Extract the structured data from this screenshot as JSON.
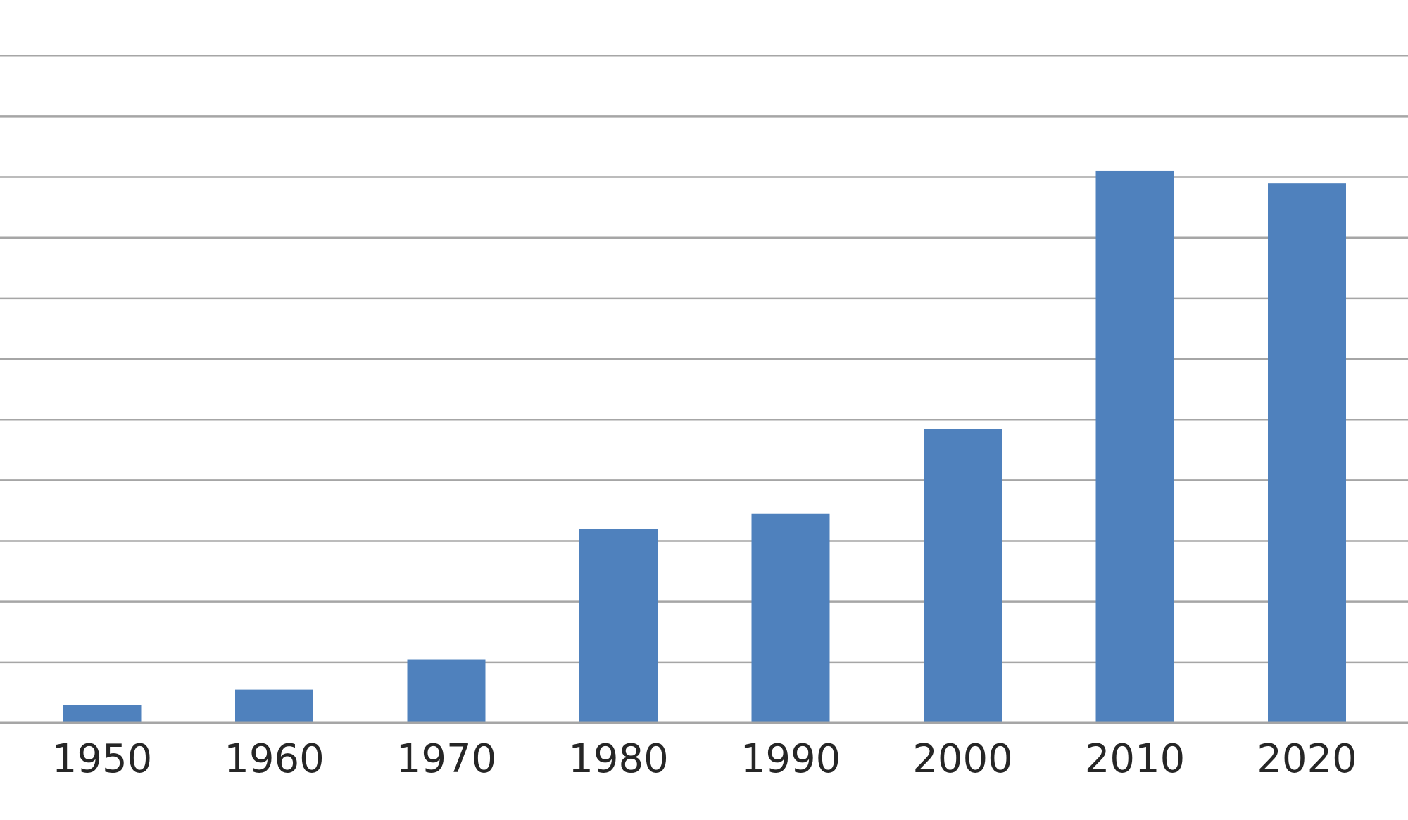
{
  "chart_data": {
    "type": "bar",
    "categories": [
      "1950",
      "1960",
      "1970",
      "1980",
      "1990",
      "2000",
      "2010",
      "2020"
    ],
    "values": [
      3,
      5.5,
      10.5,
      32,
      34.5,
      48.5,
      91,
      89
    ],
    "title": "",
    "xlabel": "",
    "ylabel": "",
    "ylim": [
      0,
      112
    ],
    "grid_step": 10,
    "grid": true,
    "legend": "none",
    "bar_color": "#4f81bd",
    "grid_color": "#a6a6a6"
  }
}
